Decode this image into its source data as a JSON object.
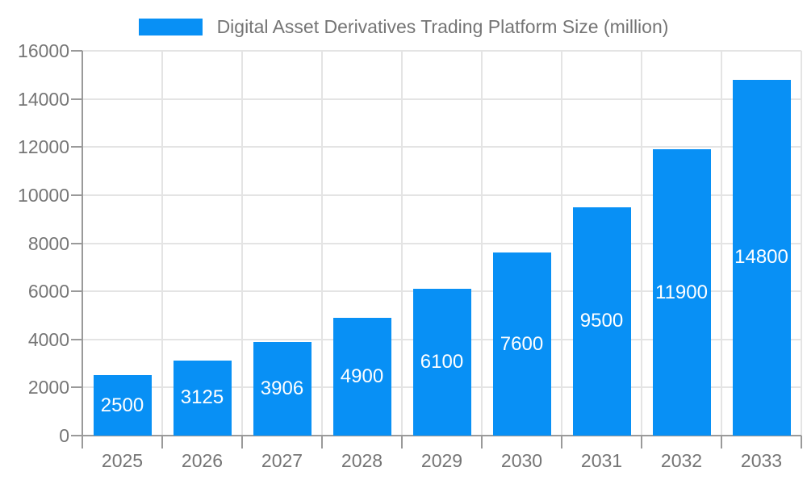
{
  "legend": {
    "label": "Digital Asset Derivatives Trading Platform Size (million)"
  },
  "chart_data": {
    "type": "bar",
    "title": "Digital Asset Derivatives Trading Platform Size (million)",
    "categories": [
      "2025",
      "2026",
      "2027",
      "2028",
      "2029",
      "2030",
      "2031",
      "2032",
      "2033"
    ],
    "series": [
      {
        "name": "Digital Asset Derivatives Trading Platform Size (million)",
        "values": [
          2500,
          3125,
          3906,
          4900,
          6100,
          7600,
          9500,
          11900,
          14800
        ]
      }
    ],
    "bar_labels": [
      "2500",
      "3125",
      "3906",
      "4900",
      "6100",
      "7600",
      "9500",
      "11900",
      "14800"
    ],
    "xlabel": "",
    "ylabel": "",
    "ylim": [
      0,
      16000
    ],
    "y_ticks": [
      0,
      2000,
      4000,
      6000,
      8000,
      10000,
      12000,
      14000,
      16000
    ],
    "grid": true,
    "legend_position": "top-center",
    "colors": {
      "bar": "#0890F5",
      "axis_text": "#757575",
      "grid_line": "#E4E4E4",
      "axis_line": "#9A9A9A",
      "bar_label": "#FFFFFF",
      "background": "#FFFFFF"
    }
  }
}
